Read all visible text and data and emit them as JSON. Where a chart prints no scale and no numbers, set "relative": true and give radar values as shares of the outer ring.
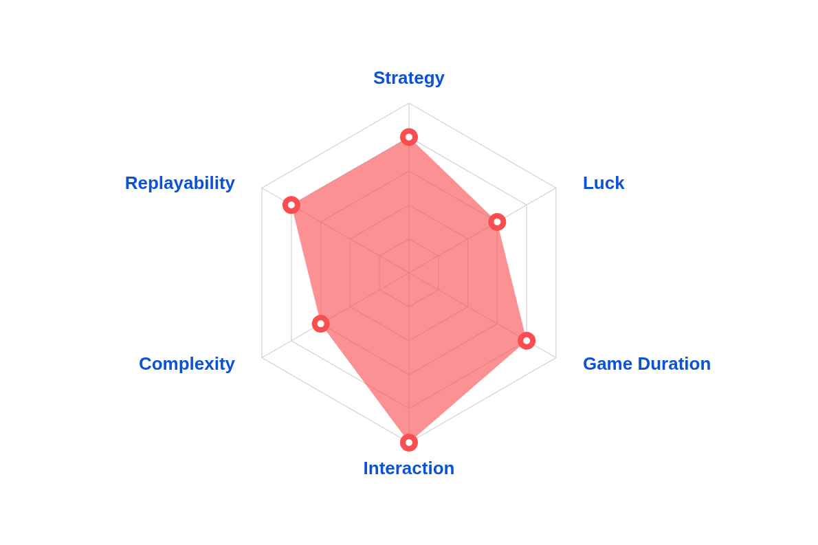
{
  "chart_data": {
    "type": "radar",
    "categories": [
      "Strategy",
      "Luck",
      "Game Duration",
      "Interaction",
      "Complexity",
      "Replayability"
    ],
    "series": [
      {
        "color": "#fa4d50",
        "values": [
          0.8,
          0.6,
          0.8,
          1,
          0.6,
          0.8
        ]
      }
    ],
    "relative": true,
    "grid": true,
    "marker": "circle"
  }
}
